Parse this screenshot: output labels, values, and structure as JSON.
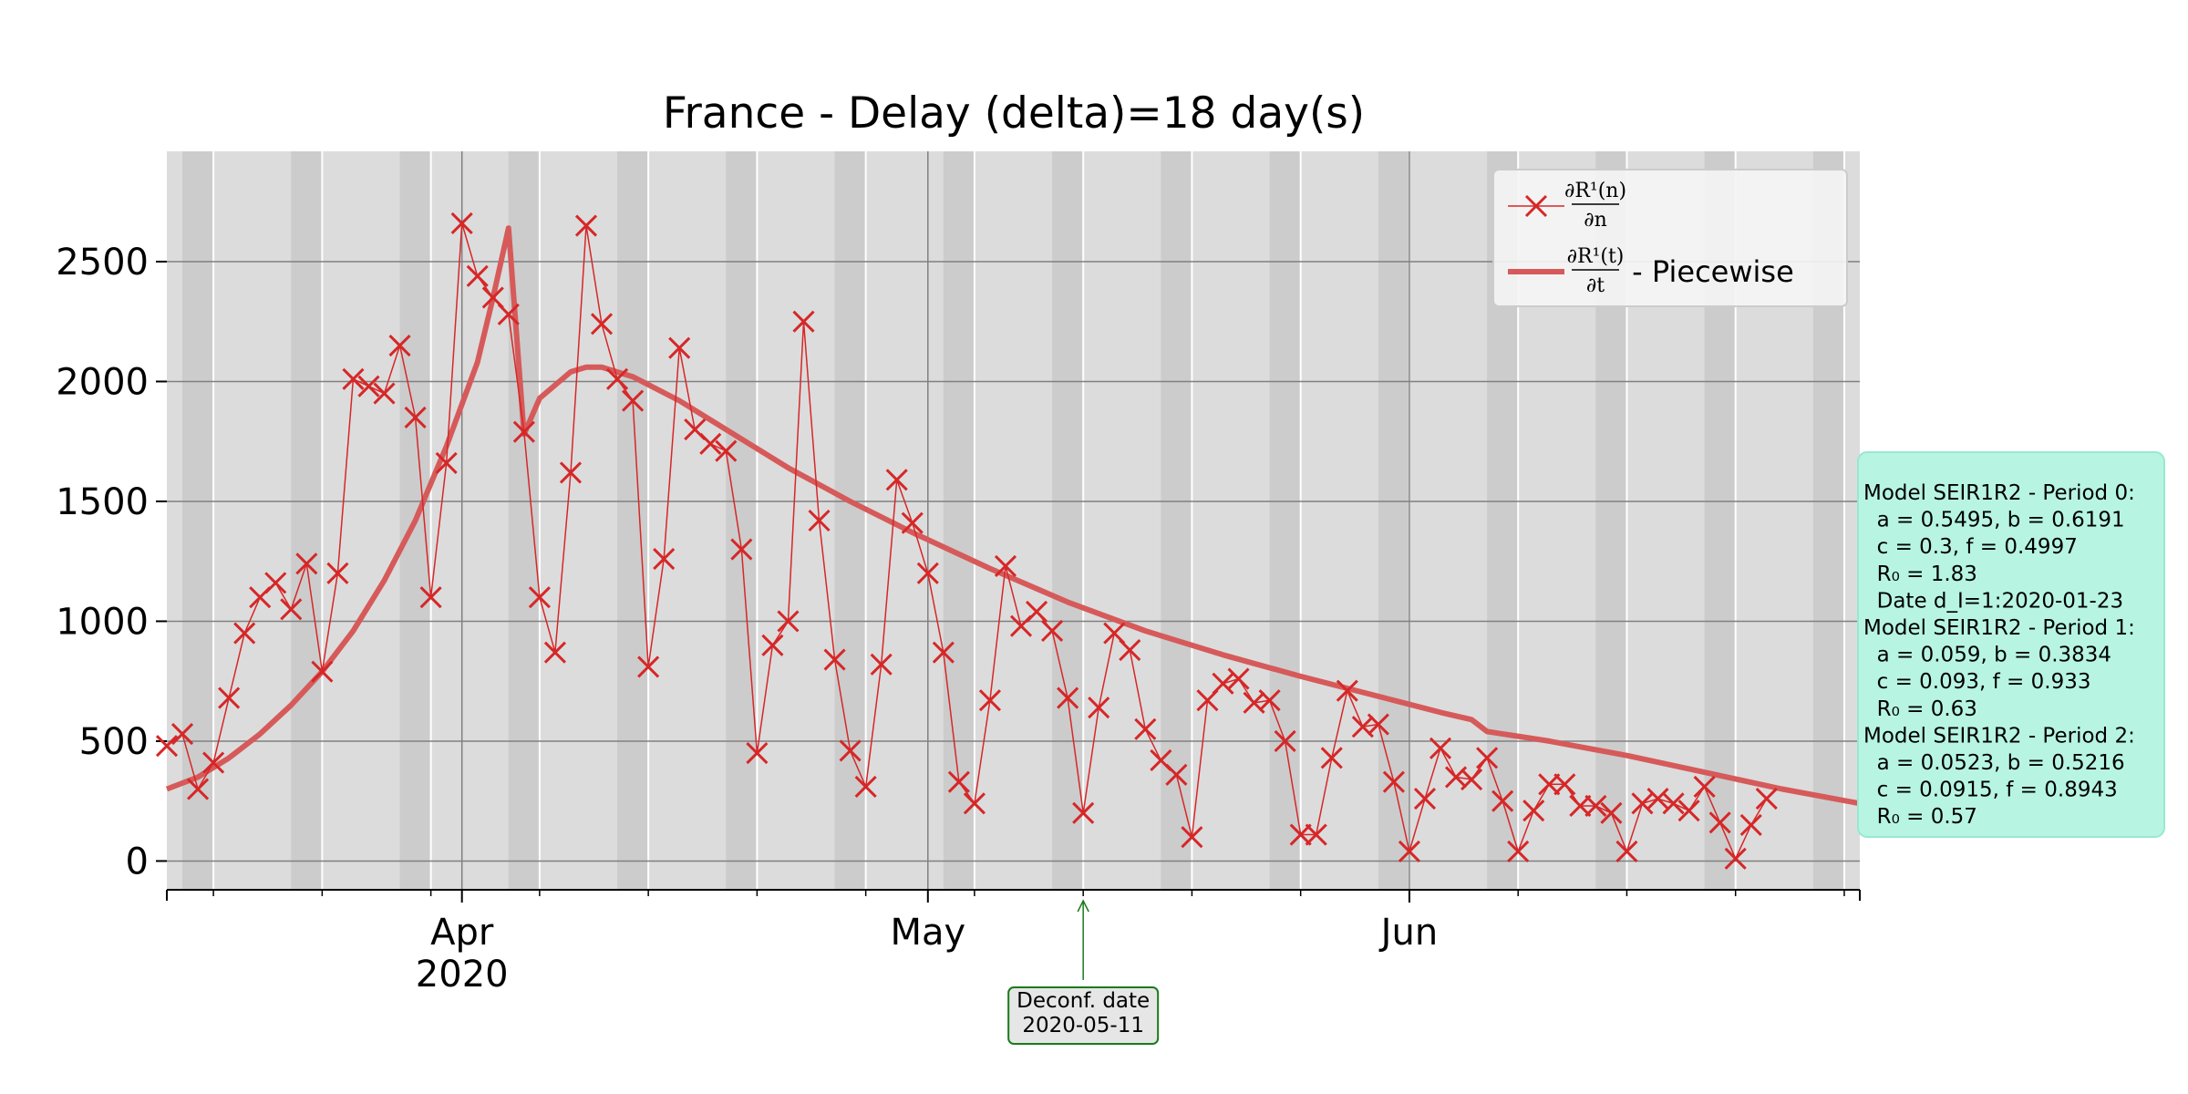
{
  "chart_data": {
    "type": "line",
    "title": "France - Delay (delta)=18 day(s)",
    "xlabel": "",
    "ylabel": "",
    "x_range": [
      "2020-03-13",
      "2020-06-30"
    ],
    "ylim": [
      -120,
      2960
    ],
    "yticks": [
      0,
      500,
      1000,
      1500,
      2000,
      2500
    ],
    "ytick_labels": [
      "0",
      "500",
      "1000",
      "1500",
      "2000",
      "2500"
    ],
    "xtick_labels": [
      {
        "date": "2020-04-01",
        "lines": [
          "Apr",
          "2020"
        ]
      },
      {
        "date": "2020-05-01",
        "lines": [
          "May"
        ]
      },
      {
        "date": "2020-06-01",
        "lines": [
          "Jun"
        ]
      }
    ],
    "grid": true,
    "background": "#dcdcdc",
    "weekend_shading": "#cccccc",
    "legend_position": "upper right",
    "series": [
      {
        "name": "∂R¹(n)/∂n",
        "marker": "x",
        "color": "#d62728",
        "start": "2020-03-13",
        "values": [
          480,
          530,
          300,
          410,
          680,
          950,
          1100,
          1160,
          1050,
          1240,
          790,
          1200,
          2010,
          1980,
          1950,
          2150,
          1850,
          1100,
          1660,
          2660,
          2440,
          2350,
          2280,
          1790,
          1100,
          870,
          1620,
          2650,
          2240,
          2010,
          1920,
          810,
          1260,
          2140,
          1800,
          1740,
          1710,
          1300,
          450,
          900,
          1000,
          2250,
          1420,
          840,
          460,
          310,
          820,
          1590,
          1410,
          1200,
          870,
          330,
          240,
          670,
          1230,
          980,
          1040,
          960,
          680,
          200,
          640,
          950,
          880,
          550,
          420,
          360,
          100,
          670,
          740,
          760,
          660,
          670,
          500,
          110,
          110,
          430,
          710,
          560,
          570,
          330,
          40,
          260,
          470,
          350,
          340,
          430,
          250,
          40,
          210,
          320,
          320,
          230,
          230,
          200,
          40,
          240,
          260,
          240,
          210,
          310,
          160,
          10,
          150,
          260
        ]
      },
      {
        "name": "∂R¹(t)/∂t",
        "suffix": " - Piecewise",
        "color": "#d65a5a",
        "points": [
          [
            "2020-03-13",
            300
          ],
          [
            "2020-03-15",
            350
          ],
          [
            "2020-03-17",
            430
          ],
          [
            "2020-03-19",
            530
          ],
          [
            "2020-03-21",
            650
          ],
          [
            "2020-03-23",
            790
          ],
          [
            "2020-03-25",
            960
          ],
          [
            "2020-03-27",
            1170
          ],
          [
            "2020-03-29",
            1420
          ],
          [
            "2020-03-31",
            1730
          ],
          [
            "2020-04-02",
            2080
          ],
          [
            "2020-04-03",
            2350
          ],
          [
            "2020-04-04",
            2640
          ],
          [
            "2020-04-05",
            1780
          ],
          [
            "2020-04-06",
            1930
          ],
          [
            "2020-04-08",
            2040
          ],
          [
            "2020-04-09",
            2060
          ],
          [
            "2020-04-10",
            2060
          ],
          [
            "2020-04-12",
            2020
          ],
          [
            "2020-04-15",
            1920
          ],
          [
            "2020-04-18",
            1800
          ],
          [
            "2020-04-22",
            1640
          ],
          [
            "2020-04-26",
            1500
          ],
          [
            "2020-04-30",
            1370
          ],
          [
            "2020-05-05",
            1220
          ],
          [
            "2020-05-10",
            1080
          ],
          [
            "2020-05-15",
            960
          ],
          [
            "2020-05-20",
            860
          ],
          [
            "2020-05-25",
            770
          ],
          [
            "2020-05-31",
            670
          ],
          [
            "2020-06-03",
            620
          ],
          [
            "2020-06-05",
            590
          ],
          [
            "2020-06-06",
            540
          ],
          [
            "2020-06-10",
            500
          ],
          [
            "2020-06-15",
            440
          ],
          [
            "2020-06-20",
            370
          ],
          [
            "2020-06-25",
            300
          ],
          [
            "2020-06-30",
            240
          ]
        ]
      }
    ],
    "annotations": {
      "deconf": {
        "date": "2020-05-11",
        "lines": [
          "Deconf. date",
          "2020-05-11"
        ],
        "color": "#1a7a1a"
      },
      "model_box": {
        "fill": "#b7f5e2",
        "lines": [
          "Model SEIR1R2 - Period 0:",
          "  a = 0.5495, b = 0.6191",
          "  c = 0.3, f = 0.4997",
          "  R₀ = 1.83",
          "  Date d_I=1:2020-01-23",
          "Model SEIR1R2 - Period 1:",
          "  a = 0.059, b = 0.3834",
          "  c = 0.093, f = 0.933",
          "  R₀ = 0.63",
          "Model SEIR1R2 - Period 2:",
          "  a = 0.0523, b = 0.5216",
          "  c = 0.0915, f = 0.8943",
          "  R₀ = 0.57"
        ]
      }
    }
  },
  "legend": {
    "label1_num": "∂R¹(n)",
    "label1_den": "∂n",
    "label2_num": "∂R¹(t)",
    "label2_den": "∂t",
    "label2_suffix": " - Piecewise"
  }
}
